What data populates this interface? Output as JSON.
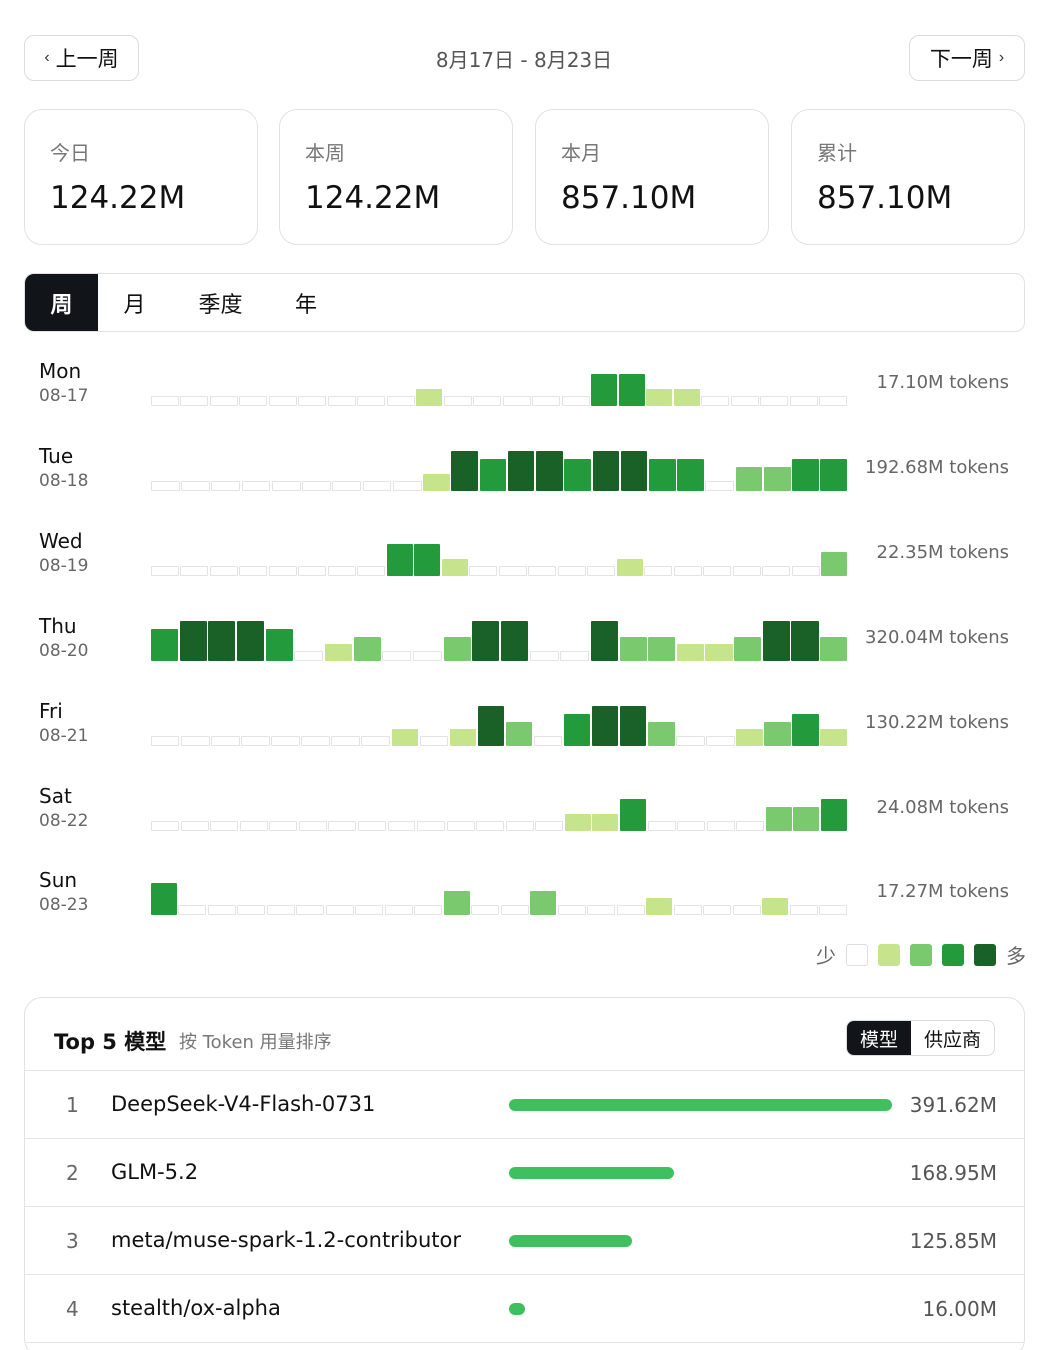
{
  "nav": {
    "prev_label": "上一周",
    "next_label": "下一周",
    "range": "8月17日 - 8月23日"
  },
  "stats": [
    {
      "label": "今日",
      "value": "124.22M"
    },
    {
      "label": "本周",
      "value": "124.22M"
    },
    {
      "label": "本月",
      "value": "857.10M"
    },
    {
      "label": "累计",
      "value": "857.10M"
    }
  ],
  "tabs": [
    {
      "label": "周",
      "active": true
    },
    {
      "label": "月",
      "active": false
    },
    {
      "label": "季度",
      "active": false
    },
    {
      "label": "年",
      "active": false
    }
  ],
  "heatmap": {
    "days": [
      {
        "name": "Mon",
        "date": "08-17",
        "total": "17.10M tokens",
        "levels": [
          0,
          0,
          0,
          0,
          0,
          0,
          0,
          0,
          0,
          1,
          0,
          0,
          0,
          0,
          0,
          3,
          3,
          1,
          1,
          0,
          0,
          0,
          0,
          0
        ]
      },
      {
        "name": "Tue",
        "date": "08-18",
        "total": "192.68M tokens",
        "levels": [
          0,
          0,
          0,
          0,
          0,
          0,
          0,
          0,
          0,
          1,
          4,
          3,
          4,
          4,
          3,
          4,
          4,
          3,
          3,
          0,
          2,
          2,
          3,
          3
        ]
      },
      {
        "name": "Wed",
        "date": "08-19",
        "total": "22.35M tokens",
        "levels": [
          0,
          0,
          0,
          0,
          0,
          0,
          0,
          0,
          3,
          3,
          1,
          0,
          0,
          0,
          0,
          0,
          1,
          0,
          0,
          0,
          0,
          0,
          0,
          2
        ]
      },
      {
        "name": "Thu",
        "date": "08-20",
        "total": "320.04M tokens",
        "levels": [
          3,
          4,
          4,
          4,
          3,
          0,
          1,
          2,
          0,
          0,
          2,
          4,
          4,
          0,
          0,
          4,
          2,
          2,
          1,
          1,
          2,
          4,
          4,
          2
        ]
      },
      {
        "name": "Fri",
        "date": "08-21",
        "total": "130.22M tokens",
        "levels": [
          0,
          0,
          0,
          0,
          0,
          0,
          0,
          0,
          1,
          0,
          1,
          4,
          2,
          0,
          3,
          4,
          4,
          2,
          0,
          0,
          1,
          2,
          3,
          1
        ]
      },
      {
        "name": "Sat",
        "date": "08-22",
        "total": "24.08M tokens",
        "levels": [
          0,
          0,
          0,
          0,
          0,
          0,
          0,
          0,
          0,
          0,
          0,
          0,
          0,
          0,
          1,
          1,
          3,
          0,
          0,
          0,
          0,
          2,
          2,
          3
        ]
      },
      {
        "name": "Sun",
        "date": "08-23",
        "total": "17.27M tokens",
        "levels": [
          3,
          0,
          0,
          0,
          0,
          0,
          0,
          0,
          0,
          0,
          2,
          0,
          0,
          2,
          0,
          0,
          0,
          1,
          0,
          0,
          0,
          1,
          0,
          0
        ]
      }
    ],
    "legend_less": "少",
    "legend_more": "多",
    "colors": [
      "#ffffff",
      "#c6e48b",
      "#7bc96f",
      "#239a3b",
      "#196127"
    ]
  },
  "top_models": {
    "title": "Top 5 模型",
    "subtitle": "按 Token 用量排序",
    "toggle": [
      {
        "label": "模型",
        "active": true
      },
      {
        "label": "供应商",
        "active": false
      }
    ],
    "rows": [
      {
        "rank": "1",
        "name": "DeepSeek-V4-Flash-0731",
        "value": "391.62M",
        "share": 1.0
      },
      {
        "rank": "2",
        "name": "GLM-5.2",
        "value": "168.95M",
        "share": 0.431
      },
      {
        "rank": "3",
        "name": "meta/muse-spark-1.2-contributor",
        "value": "125.85M",
        "share": 0.321
      },
      {
        "rank": "4",
        "name": "stealth/ox-alpha",
        "value": "16.00M",
        "share": 0.041
      }
    ],
    "bar_color": "#3fc05f"
  }
}
